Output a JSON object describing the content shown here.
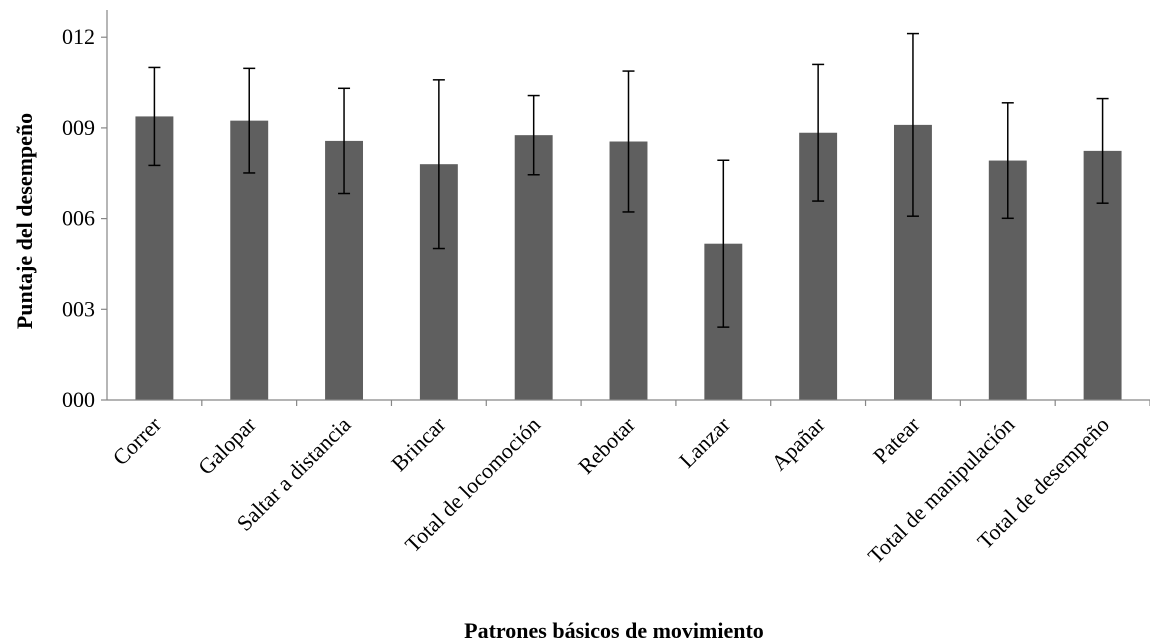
{
  "chart_data": {
    "type": "bar",
    "title": "",
    "xlabel": "Patrones básicos de movimiento",
    "ylabel": "Puntaje del desempeño",
    "ylim": [
      0,
      12.9
    ],
    "yticks": [
      0,
      3,
      6,
      9,
      12
    ],
    "ytick_labels": [
      "000",
      "003",
      "006",
      "009",
      "012"
    ],
    "grid": false,
    "legend": "none",
    "categories": [
      "Correr",
      "Galopar",
      "Saltar a distancia",
      "Brincar",
      "Total de locomoción",
      "Rebotar",
      "Lanzar",
      "Apañar",
      "Patear",
      "Total de manipulación",
      "Total de desempeño"
    ],
    "values": [
      9.38,
      9.24,
      8.57,
      7.8,
      8.76,
      8.55,
      5.17,
      8.84,
      9.1,
      7.92,
      8.24
    ],
    "error": [
      1.62,
      1.73,
      1.74,
      2.79,
      1.31,
      2.33,
      2.76,
      2.26,
      3.02,
      1.91,
      1.73
    ],
    "bar_color": "#5f5f5f",
    "axis_color": "#868686",
    "error_color": "#000000"
  }
}
